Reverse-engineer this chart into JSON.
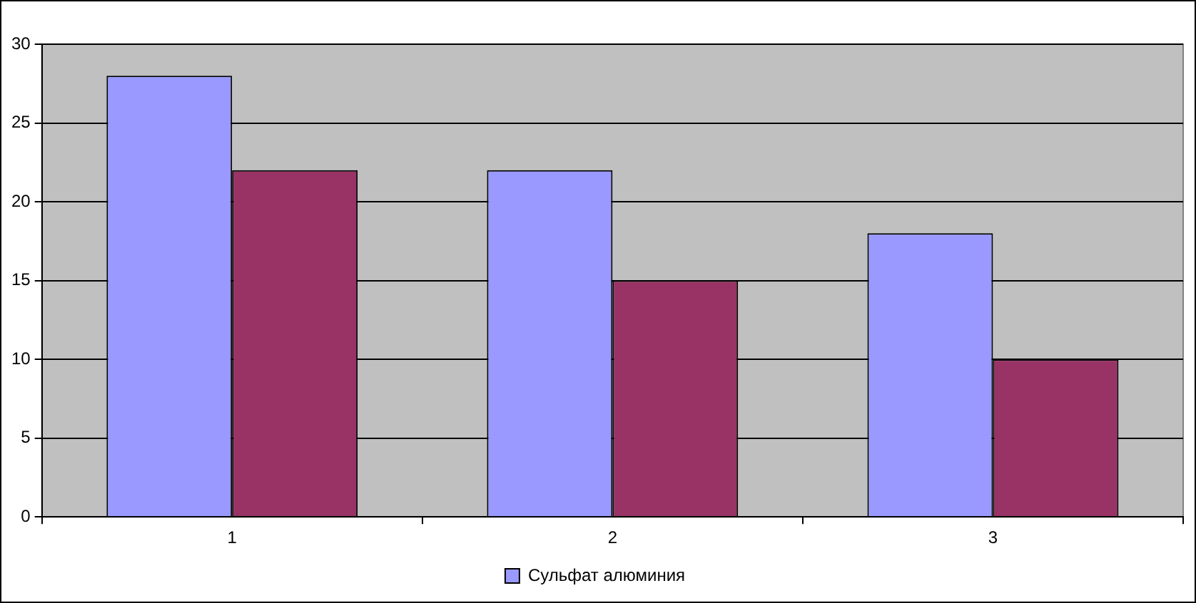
{
  "chart_data": {
    "type": "bar",
    "categories": [
      "1",
      "2",
      "3"
    ],
    "series": [
      {
        "name": "Сульфат алюминия",
        "color": "#9999ff",
        "values": [
          28,
          22,
          18
        ]
      },
      {
        "color": "#993366",
        "values": [
          22,
          15,
          10
        ]
      }
    ],
    "ylim": [
      0,
      30
    ],
    "yticks": [
      0,
      5,
      10,
      15,
      20,
      25,
      30
    ],
    "grid": "y",
    "legend": "bottom"
  }
}
